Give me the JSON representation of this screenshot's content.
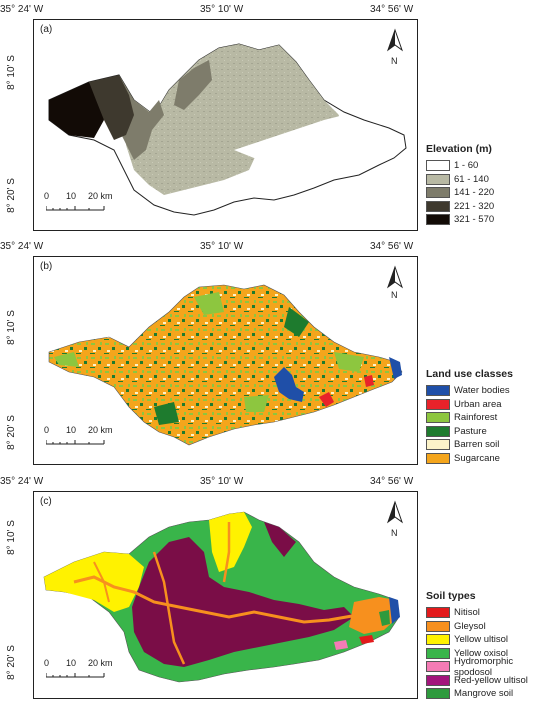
{
  "top_coords": {
    "left": "35° 24' W",
    "mid": "35° 10' W",
    "right": "34° 56' W"
  },
  "lat_coords": {
    "upper": "8° 10' S",
    "lower": "8° 20' S"
  },
  "north_label": "N",
  "scalebar": {
    "labels": [
      "0",
      "10",
      "20 km"
    ]
  },
  "panels": [
    {
      "label": "(a)",
      "legend_title": "Elevation (m)",
      "classes": [
        {
          "label": "1 - 60",
          "color": "#ffffff"
        },
        {
          "label": "61 - 140",
          "color": "#b8b9a4"
        },
        {
          "label": "141 - 220",
          "color": "#7e7c6b"
        },
        {
          "label": "221 - 320",
          "color": "#3e392e"
        },
        {
          "label": "321 - 570",
          "color": "#120b06"
        }
      ]
    },
    {
      "label": "(b)",
      "legend_title": "Land use classes",
      "classes": [
        {
          "label": "Water bodies",
          "color": "#1f4fa8"
        },
        {
          "label": "Urban area",
          "color": "#e8222a"
        },
        {
          "label": "Rainforest",
          "color": "#8dc63f"
        },
        {
          "label": "Pasture",
          "color": "#1e7b2e"
        },
        {
          "label": "Barren soil",
          "color": "#fcf3c9"
        },
        {
          "label": "Sugarcane",
          "color": "#f4a51c"
        }
      ]
    },
    {
      "label": "(c)",
      "legend_title": "Soil types",
      "classes": [
        {
          "label": "Nitisol",
          "color": "#e31a1c"
        },
        {
          "label": "Gleysol",
          "color": "#f7901e"
        },
        {
          "label": "Yellow ultisol",
          "color": "#fff200"
        },
        {
          "label": "Yellow oxisol",
          "color": "#39b54a"
        },
        {
          "label": "Hydromorphic spodosol",
          "color": "#f47bb5"
        },
        {
          "label": "Red-yellow ultisol",
          "color": "#a3157c"
        },
        {
          "label": "Mangrove soil",
          "color": "#2e9a3d"
        }
      ]
    }
  ]
}
